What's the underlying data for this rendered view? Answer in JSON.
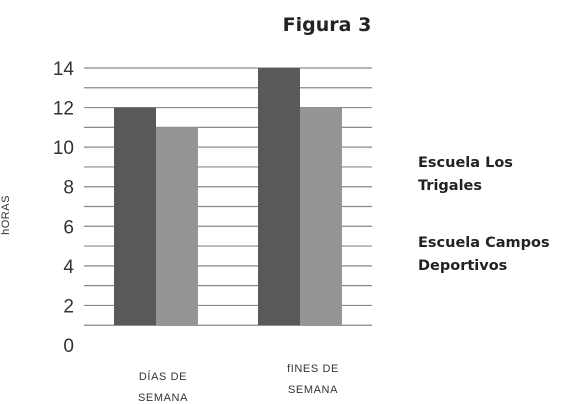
{
  "chart_data": {
    "type": "bar",
    "title": "Figura 3",
    "ylabel": "hORAS",
    "xlabel": "",
    "categories": [
      [
        "DÍAS DE",
        "SEMANA"
      ],
      [
        "fINES DE",
        "SEMANA"
      ]
    ],
    "series": [
      {
        "name": [
          "Escuela Los",
          "Trigales"
        ],
        "values": [
          12,
          14
        ],
        "color": "#59595b"
      },
      {
        "name": [
          "Escuela Campos",
          "Deportivos"
        ],
        "values": [
          11,
          12
        ],
        "color": "#959597"
      }
    ],
    "ylim": [
      0,
      14
    ],
    "yticks": [
      0,
      2,
      4,
      6,
      8,
      10,
      12,
      14
    ],
    "grid": true,
    "legend_position": "right"
  }
}
